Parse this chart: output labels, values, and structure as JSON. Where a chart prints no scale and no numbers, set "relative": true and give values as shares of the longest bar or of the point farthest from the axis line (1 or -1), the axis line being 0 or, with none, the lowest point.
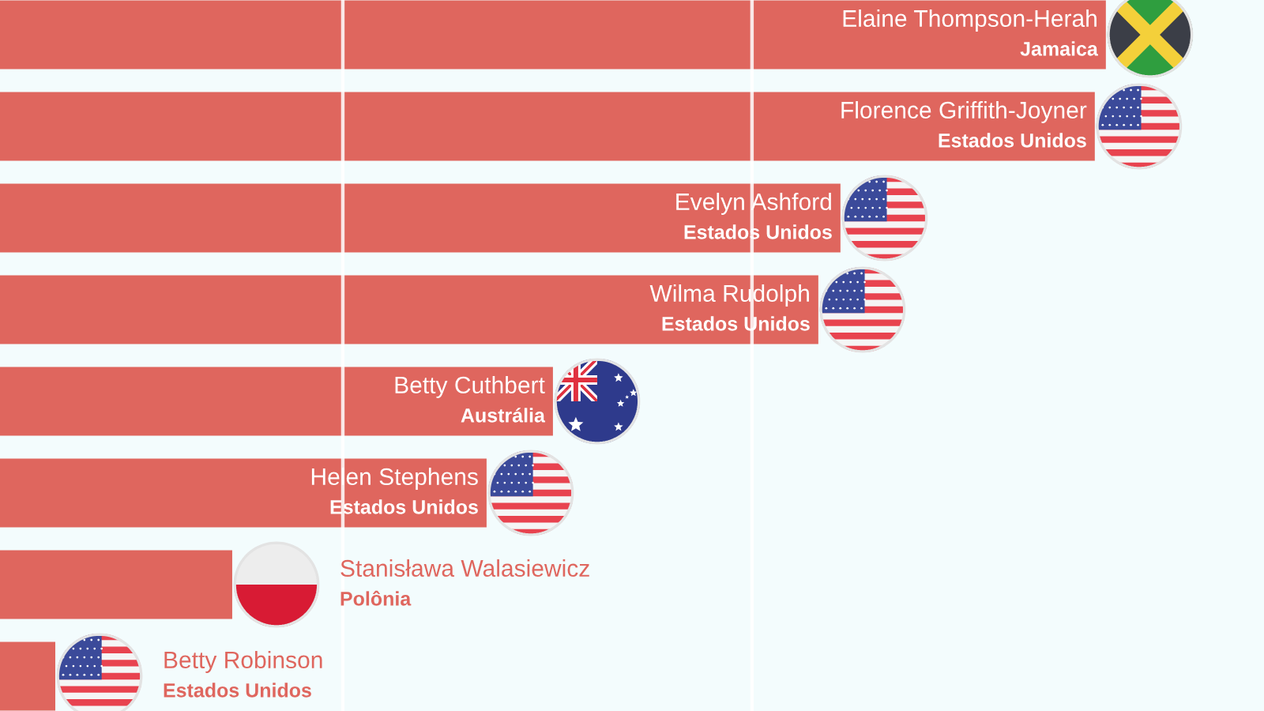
{
  "chart_data": {
    "type": "bar",
    "orientation": "horizontal",
    "relative": true,
    "categories": [
      "Elaine Thompson-Herah\nJamaica",
      "Florence Griffith-Joyner\nEstados Unidos",
      "Evelyn Ashford\nEstados Unidos",
      "Wilma Rudolph\nEstados Unidos",
      "Betty Cuthbert\nAustrália",
      "Helen Stephens\nEstados Unidos",
      "Stanisława Walasiewicz\nPolônia",
      "Betty Robinson\nEstados Unidos"
    ],
    "values": [
      1,
      0.99,
      0.76,
      0.74,
      0.5,
      0.44,
      0.21,
      0.05
    ],
    "color": "#df665e",
    "ref_lines": [
      {
        "axis": "x",
        "value": 0.31,
        "color": "#ffffff"
      },
      {
        "axis": "x",
        "value": 0.68,
        "color": "#ffffff"
      }
    ]
  }
}
